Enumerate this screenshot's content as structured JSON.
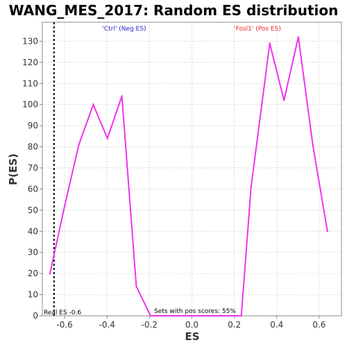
{
  "chart_data": {
    "type": "line",
    "title": "WANG_MES_2017: Random ES distribution",
    "xlabel": "ES",
    "ylabel": "P(ES)",
    "xlim": [
      -0.705,
      0.705
    ],
    "ylim": [
      0,
      139
    ],
    "x_ticks": [
      -0.6,
      -0.4,
      -0.2,
      0.0,
      0.2,
      0.4,
      0.6
    ],
    "x_tick_labels": [
      "-0.6",
      "-0.4",
      "-0.2",
      "0.0",
      "0.2",
      "0.4",
      "0.6"
    ],
    "y_ticks": [
      0,
      10,
      20,
      30,
      40,
      50,
      60,
      70,
      80,
      90,
      100,
      110,
      120,
      130
    ],
    "y_tick_labels": [
      "0",
      "10",
      "20",
      "30",
      "40",
      "50",
      "60",
      "70",
      "80",
      "90",
      "100",
      "110",
      "120",
      "130"
    ],
    "grid": true,
    "series": [
      {
        "color": "#ee33ee",
        "x": [
          -0.669,
          -0.6,
          -0.533,
          -0.465,
          -0.398,
          -0.33,
          -0.262,
          -0.195,
          -0.127,
          -0.06,
          0.008,
          0.076,
          0.143,
          0.211,
          0.233,
          0.279,
          0.367,
          0.434,
          0.502,
          0.57,
          0.639
        ],
        "y": [
          20,
          52,
          81,
          100,
          84,
          104,
          14,
          0,
          0,
          0,
          0,
          0,
          0,
          0,
          0,
          61,
          129,
          102,
          132,
          81,
          40
        ]
      }
    ],
    "vline": {
      "x": -0.65,
      "color": "#000000",
      "style": "dashed"
    },
    "annotations": {
      "neg_label": {
        "text": "'Ctrl' (Neg ES)",
        "color": "#2222cc"
      },
      "pos_label": {
        "text": "'Fosl1' (Pos ES)",
        "color": "#ee2222"
      },
      "real_es": "Real ES -0.6",
      "sets_pos": "Sets with pos scores: 55%"
    }
  }
}
